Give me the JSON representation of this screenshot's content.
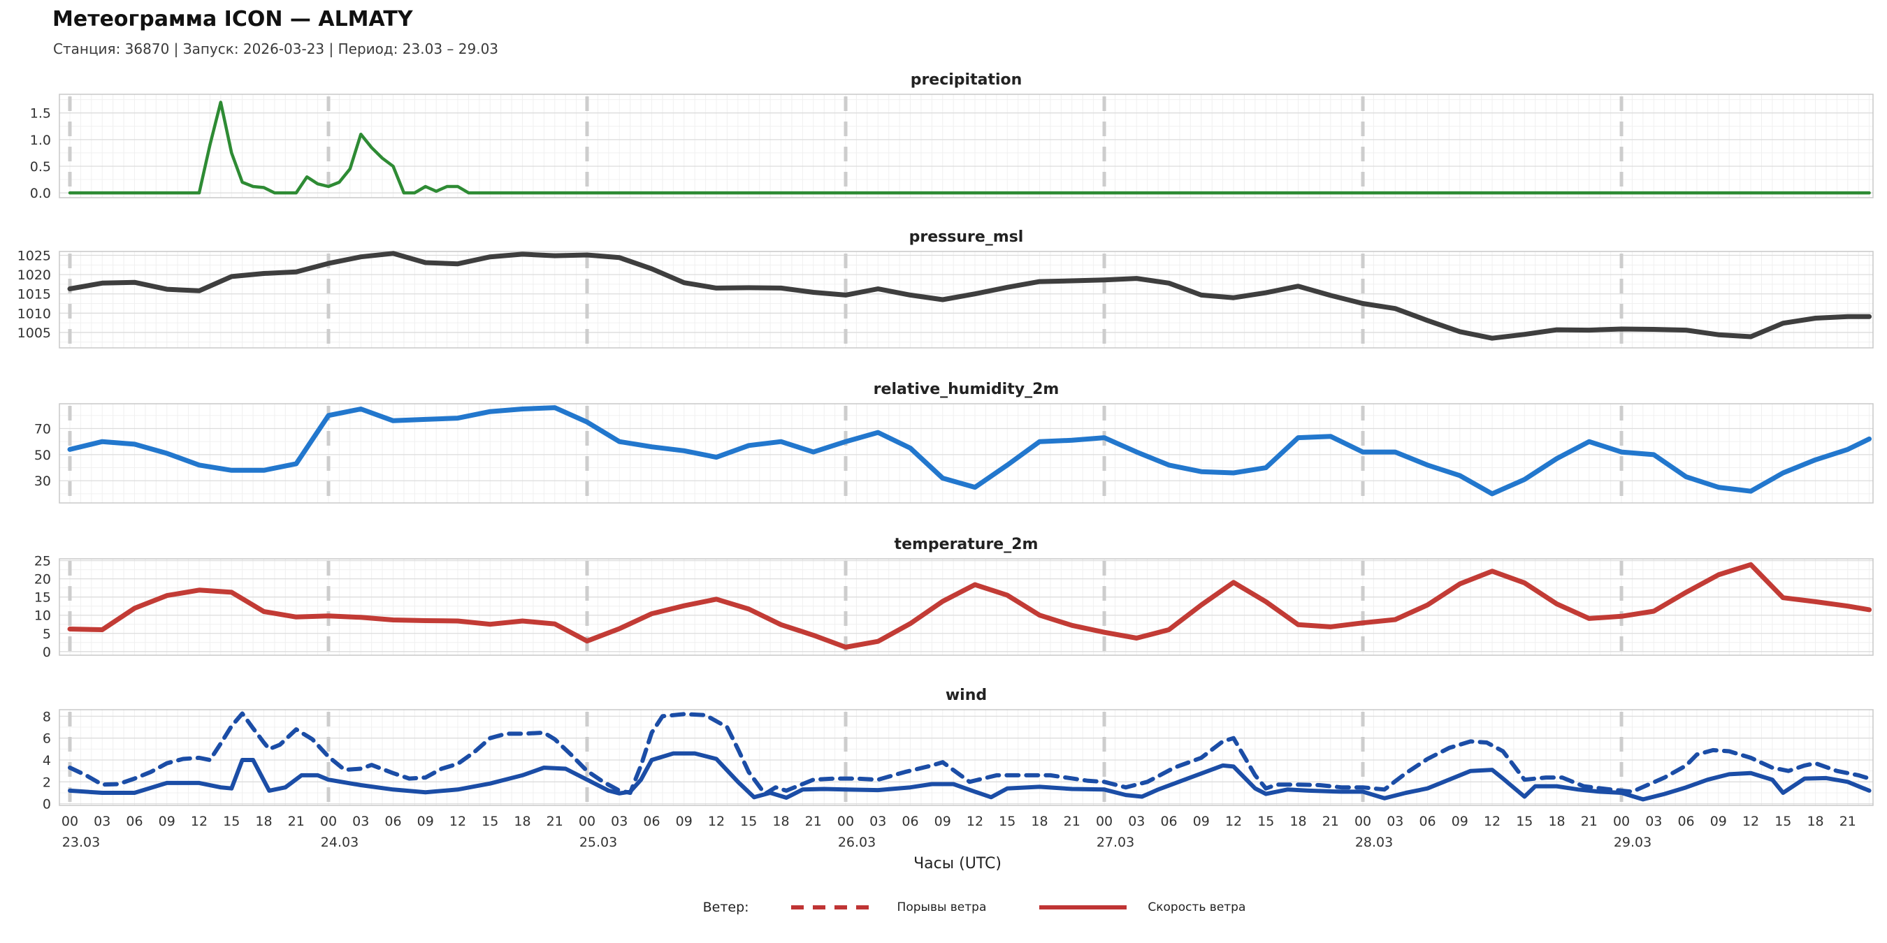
{
  "header": {
    "title": "Метеограмма ICON — ALMATY",
    "subtitle": "Станция: 36870  | Запуск: 2026-03-23  | Период: 23.03 – 29.03"
  },
  "xaxis": {
    "label": "Часы (UTC)",
    "hour_ticks": [
      "00",
      "03",
      "06",
      "09",
      "12",
      "15",
      "18",
      "21"
    ],
    "day_labels": [
      "23.03",
      "24.03",
      "25.03",
      "26.03",
      "27.03",
      "28.03",
      "29.03"
    ],
    "hours_total": 168
  },
  "legend": {
    "prefix": "Ветер:",
    "color": "#bf3434",
    "items": [
      {
        "label": "Порывы ветра",
        "style": "dashed"
      },
      {
        "label": "Скорость ветра",
        "style": "solid"
      }
    ]
  },
  "colors": {
    "precipitation": "#2e8b34",
    "pressure": "#3e3e3e",
    "humidity": "#2277cd",
    "temperature": "#c23b35",
    "wind": "#1b4da6",
    "grid_minor": "#f0f0f0",
    "grid_major": "#dcdcdc",
    "day_dash": "#cdcdcd",
    "spine": "#c8c8c8",
    "tick_text": "#333333",
    "panel_title": "#222222"
  },
  "chart_data": [
    {
      "type": "line",
      "title": "precipitation",
      "color": "#2e8b34",
      "ylim": [
        -0.09,
        1.85
      ],
      "yticks": [
        0.0,
        0.5,
        1.0,
        1.5
      ],
      "ytick_labels": [
        "0.0",
        "0.5",
        "1.0",
        "1.5"
      ],
      "minor_step": 0.25,
      "series": [
        {
          "name": "precipitation",
          "style": "solid",
          "width": 4.5,
          "hours": [
            0,
            2,
            4,
            6,
            8,
            10,
            12,
            13,
            14,
            15,
            16,
            17,
            18,
            19,
            21,
            22,
            23,
            24,
            25,
            26,
            27,
            28,
            29,
            30,
            31,
            32,
            33,
            34,
            35,
            36,
            37,
            38,
            40,
            44,
            48,
            56,
            64,
            72,
            80,
            88,
            96,
            104,
            112,
            120,
            128,
            136,
            144,
            152,
            160,
            167
          ],
          "values": [
            0,
            0,
            0,
            0,
            0,
            0,
            0,
            0.9,
            1.7,
            0.75,
            0.2,
            0.12,
            0.1,
            0,
            0,
            0.3,
            0.17,
            0.12,
            0.2,
            0.45,
            1.1,
            0.85,
            0.65,
            0.5,
            0,
            0,
            0.12,
            0.03,
            0.12,
            0.12,
            0,
            0,
            0,
            0,
            0,
            0,
            0,
            0,
            0,
            0,
            0,
            0,
            0,
            0,
            0,
            0,
            0,
            0,
            0,
            0
          ]
        }
      ]
    },
    {
      "type": "line",
      "title": "pressure_msl",
      "color": "#3e3e3e",
      "ylim": [
        1001,
        1026
      ],
      "yticks": [
        1005,
        1010,
        1015,
        1020,
        1025
      ],
      "ytick_labels": [
        "1005",
        "1010",
        "1015",
        "1020",
        "1025"
      ],
      "minor_step": 2.5,
      "series": [
        {
          "name": "pressure_msl",
          "style": "solid",
          "width": 7,
          "hours": [
            0,
            3,
            6,
            9,
            12,
            15,
            18,
            21,
            24,
            27,
            30,
            33,
            36,
            39,
            42,
            45,
            48,
            51,
            54,
            57,
            60,
            63,
            66,
            69,
            72,
            75,
            78,
            81,
            84,
            87,
            90,
            93,
            96,
            99,
            102,
            105,
            108,
            111,
            114,
            117,
            120,
            123,
            126,
            129,
            132,
            135,
            138,
            141,
            144,
            147,
            150,
            153,
            156,
            159,
            162,
            165,
            167
          ],
          "values": [
            1016.3,
            1017.8,
            1018.0,
            1016.2,
            1015.8,
            1019.5,
            1020.3,
            1020.7,
            1022.9,
            1024.6,
            1025.5,
            1023.1,
            1022.8,
            1024.6,
            1025.3,
            1024.9,
            1025.1,
            1024.4,
            1021.5,
            1017.9,
            1016.5,
            1016.6,
            1016.5,
            1015.4,
            1014.7,
            1016.3,
            1014.7,
            1013.5,
            1015.0,
            1016.7,
            1018.2,
            1018.4,
            1018.6,
            1019.0,
            1017.8,
            1014.7,
            1014.0,
            1015.3,
            1017.0,
            1014.6,
            1012.5,
            1011.2,
            1008.1,
            1005.2,
            1003.5,
            1004.5,
            1005.7,
            1005.6,
            1005.9,
            1005.8,
            1005.6,
            1004.4,
            1003.9,
            1007.4,
            1008.7,
            1009.1,
            1009.1
          ]
        }
      ]
    },
    {
      "type": "line",
      "title": "relative_humidity_2m",
      "color": "#2277cd",
      "ylim": [
        13,
        89
      ],
      "yticks": [
        30,
        50,
        70
      ],
      "ytick_labels": [
        "30",
        "50",
        "70"
      ],
      "minor_step": 10,
      "series": [
        {
          "name": "relative_humidity_2m",
          "style": "solid",
          "width": 7,
          "hours": [
            0,
            3,
            6,
            9,
            12,
            15,
            18,
            21,
            24,
            27,
            30,
            33,
            36,
            39,
            42,
            45,
            48,
            51,
            54,
            57,
            60,
            63,
            66,
            69,
            72,
            75,
            78,
            81,
            84,
            87,
            90,
            93,
            96,
            99,
            102,
            105,
            108,
            111,
            114,
            117,
            120,
            123,
            126,
            129,
            132,
            135,
            138,
            141,
            144,
            147,
            150,
            153,
            156,
            159,
            162,
            165,
            167
          ],
          "values": [
            54,
            60,
            58,
            51,
            42,
            38,
            38,
            43,
            80,
            85,
            76,
            77,
            78,
            83,
            85,
            86,
            75,
            60,
            56,
            53,
            48,
            57,
            60,
            52,
            60,
            67,
            55,
            32,
            25,
            42,
            60,
            61,
            63,
            52,
            42,
            37,
            36,
            40,
            63,
            64,
            52,
            52,
            42,
            34,
            20,
            31,
            47,
            60,
            52,
            50,
            33,
            25,
            22,
            36,
            46,
            54,
            62
          ]
        }
      ]
    },
    {
      "type": "line",
      "title": "temperature_2m",
      "color": "#c23b35",
      "ylim": [
        -1,
        25.5
      ],
      "yticks": [
        0,
        5,
        10,
        15,
        20,
        25
      ],
      "ytick_labels": [
        "0",
        "5",
        "10",
        "15",
        "20",
        "25"
      ],
      "minor_step": 2.5,
      "series": [
        {
          "name": "temperature_2m",
          "style": "solid",
          "width": 7,
          "hours": [
            0,
            3,
            6,
            9,
            12,
            15,
            18,
            21,
            24,
            27,
            30,
            33,
            36,
            39,
            42,
            45,
            48,
            51,
            54,
            57,
            60,
            63,
            66,
            69,
            72,
            75,
            78,
            81,
            84,
            87,
            90,
            93,
            96,
            99,
            102,
            105,
            108,
            111,
            114,
            117,
            120,
            123,
            126,
            129,
            132,
            135,
            138,
            141,
            144,
            147,
            150,
            153,
            156,
            159,
            162,
            165,
            167
          ],
          "values": [
            6.2,
            6.0,
            11.9,
            15.4,
            16.9,
            16.3,
            11.0,
            9.5,
            9.8,
            9.4,
            8.7,
            8.5,
            8.4,
            7.5,
            8.4,
            7.6,
            2.9,
            6.3,
            10.4,
            12.6,
            14.4,
            11.7,
            7.4,
            4.5,
            1.2,
            2.8,
            7.7,
            13.8,
            18.4,
            15.5,
            10.0,
            7.2,
            5.3,
            3.7,
            6.0,
            12.8,
            19.0,
            13.7,
            7.4,
            6.8,
            7.9,
            8.8,
            12.8,
            18.6,
            22.1,
            18.9,
            13.1,
            9.1,
            9.7,
            11.1,
            16.3,
            21.1,
            23.9,
            14.8,
            13.7,
            12.5,
            11.5
          ]
        }
      ]
    },
    {
      "type": "line",
      "title": "wind",
      "color": "#1b4da6",
      "ylim": [
        -0.15,
        8.6
      ],
      "yticks": [
        0,
        2,
        4,
        6,
        8
      ],
      "ytick_labels": [
        "0",
        "2",
        "4",
        "6",
        "8"
      ],
      "minor_step": 1,
      "series": [
        {
          "name": "Порывы ветра",
          "style": "dashed",
          "width": 6,
          "hours": [
            0,
            1.5,
            3,
            4.5,
            6,
            7.5,
            9,
            10.5,
            12,
            13,
            14,
            15,
            16,
            17,
            18,
            18.5,
            19.5,
            21,
            22.5,
            24,
            25.5,
            27,
            28,
            30,
            31.5,
            33,
            34.5,
            36,
            37.5,
            39,
            40.5,
            42,
            44,
            45,
            46.5,
            48,
            49.5,
            51,
            52,
            53,
            54,
            55,
            57,
            59,
            61,
            62,
            63,
            64.5,
            65.5,
            66.5,
            69,
            71,
            73,
            75,
            77.5,
            80,
            81,
            83.5,
            86,
            88.5,
            91,
            94.5,
            96,
            98,
            100,
            102.5,
            105,
            107,
            108,
            110,
            111,
            112,
            114,
            116,
            118,
            120,
            122,
            124,
            126,
            128,
            130,
            131.5,
            133,
            135,
            137,
            138.5,
            140.5,
            143,
            145,
            148,
            150,
            151,
            152.5,
            154,
            156,
            158,
            159.5,
            161,
            162,
            164,
            166,
            167
          ],
          "values": [
            3.3,
            2.6,
            1.75,
            1.8,
            2.3,
            2.9,
            3.7,
            4.1,
            4.2,
            4.0,
            5.5,
            7.1,
            8.25,
            6.9,
            5.6,
            5.0,
            5.4,
            6.8,
            5.9,
            4.3,
            3.1,
            3.2,
            3.55,
            2.8,
            2.3,
            2.4,
            3.2,
            3.65,
            4.7,
            6.0,
            6.4,
            6.4,
            6.5,
            5.9,
            4.5,
            3.0,
            2.0,
            1.2,
            1.0,
            3.5,
            6.5,
            8.0,
            8.2,
            8.1,
            7.0,
            5.0,
            2.9,
            0.9,
            1.5,
            1.2,
            2.2,
            2.3,
            2.3,
            2.2,
            2.9,
            3.5,
            3.8,
            2.0,
            2.6,
            2.6,
            2.6,
            2.1,
            2.0,
            1.5,
            2.0,
            3.3,
            4.2,
            5.7,
            6.0,
            2.6,
            1.4,
            1.75,
            1.75,
            1.7,
            1.5,
            1.5,
            1.3,
            2.8,
            4.1,
            5.1,
            5.7,
            5.6,
            4.8,
            2.2,
            2.4,
            2.4,
            1.6,
            1.3,
            1.1,
            2.4,
            3.5,
            4.5,
            4.9,
            4.8,
            4.2,
            3.3,
            3.0,
            3.5,
            3.7,
            3.0,
            2.6,
            2.3
          ]
        },
        {
          "name": "Скорость ветра",
          "style": "solid",
          "width": 6,
          "hours": [
            0,
            3,
            6,
            9,
            12,
            14,
            15,
            16,
            17,
            18.5,
            20,
            21.5,
            23,
            24,
            27,
            30,
            33,
            36,
            39,
            42,
            44,
            46,
            48,
            50,
            51,
            52,
            53,
            54,
            56,
            58,
            60,
            62,
            63.5,
            65,
            66.5,
            68,
            70,
            72,
            75,
            78,
            80,
            82,
            84,
            85.5,
            87,
            90,
            93,
            96,
            98,
            99.5,
            101,
            104,
            107,
            108,
            110,
            111,
            113,
            115,
            118,
            120,
            122,
            124,
            126,
            128,
            130,
            132,
            133,
            135,
            136,
            138,
            140,
            142,
            144,
            146,
            148,
            150,
            152,
            154,
            156,
            158,
            159,
            161,
            163,
            165,
            167
          ],
          "values": [
            1.2,
            1.0,
            1.0,
            1.9,
            1.9,
            1.5,
            1.4,
            4.0,
            4.0,
            1.2,
            1.5,
            2.6,
            2.6,
            2.2,
            1.7,
            1.3,
            1.05,
            1.3,
            1.85,
            2.6,
            3.3,
            3.2,
            2.2,
            1.2,
            0.95,
            1.1,
            2.2,
            4.0,
            4.6,
            4.6,
            4.1,
            2.0,
            0.6,
            1.0,
            0.55,
            1.3,
            1.35,
            1.3,
            1.25,
            1.5,
            1.8,
            1.8,
            1.1,
            0.6,
            1.4,
            1.55,
            1.35,
            1.3,
            0.8,
            0.65,
            1.3,
            2.4,
            3.5,
            3.4,
            1.4,
            0.9,
            1.3,
            1.2,
            1.1,
            1.1,
            0.5,
            1.0,
            1.4,
            2.2,
            3.0,
            3.1,
            2.3,
            0.65,
            1.6,
            1.6,
            1.3,
            1.1,
            1.0,
            0.4,
            0.9,
            1.5,
            2.2,
            2.7,
            2.8,
            2.2,
            1.0,
            2.3,
            2.35,
            2.0,
            1.2
          ]
        }
      ]
    }
  ]
}
